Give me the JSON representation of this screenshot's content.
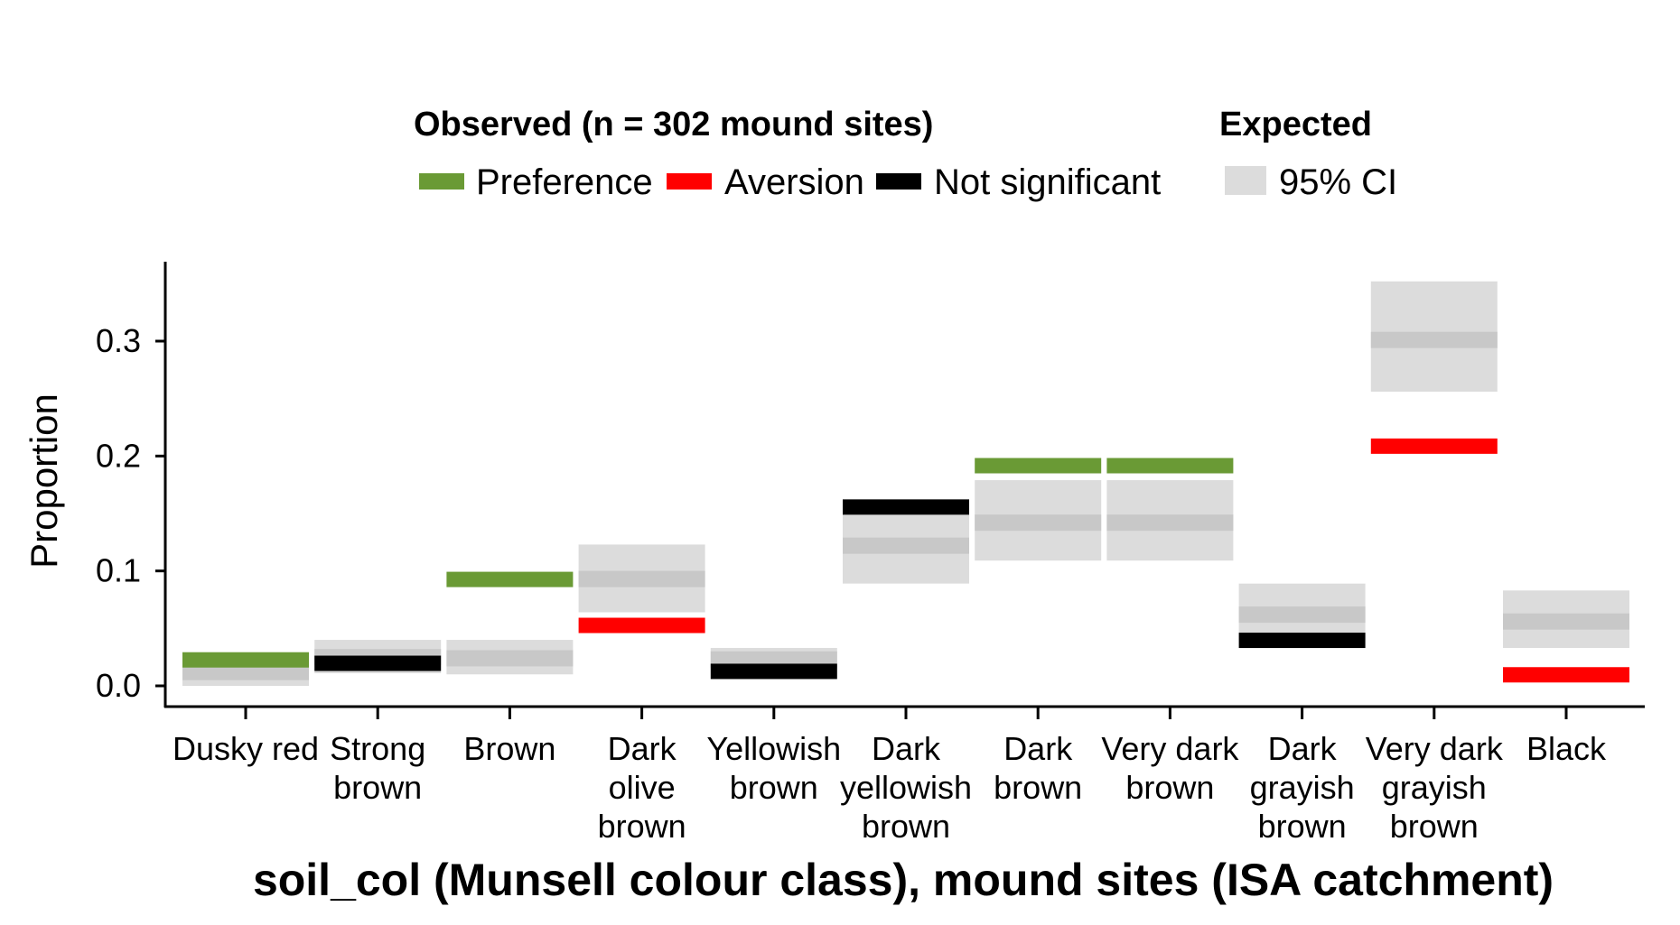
{
  "chart_data": {
    "type": "bar",
    "xlabel": "soil_col (Munsell colour class), mound sites (ISA catchment)",
    "ylabel": "Proportion",
    "ylim": [
      -0.04,
      0.37
    ],
    "yticks": [
      0.0,
      0.1,
      0.2,
      0.3
    ],
    "ytick_labels": [
      "0.0",
      "0.1",
      "0.2",
      "0.3"
    ],
    "grid": false,
    "legend": {
      "placement": "top",
      "observed_title": "Observed (n = 302 mound sites)",
      "expected_title": "Expected",
      "items": [
        {
          "key": "Preference",
          "label": "Preference",
          "color": "#6a9a35"
        },
        {
          "key": "Aversion",
          "label": "Aversion",
          "color": "#ff0000"
        },
        {
          "key": "Not significant",
          "label": "Not significant",
          "color": "#000000"
        }
      ],
      "ci_label": "95% CI"
    },
    "colors": {
      "Preference": "#6a9a35",
      "Aversion": "#ff0000",
      "Not significant": "#000000",
      "ci_band": "#dcdcdc",
      "expected_line": "#c8c8c8"
    },
    "categories": [
      {
        "label_lines": [
          "Dusky red"
        ],
        "observed": 0.023,
        "status": "Preference",
        "expected": 0.012,
        "ci_low": 0.0,
        "ci_high": 0.025
      },
      {
        "label_lines": [
          "Strong",
          "brown"
        ],
        "observed": 0.02,
        "status": "Not significant",
        "expected": 0.025,
        "ci_low": 0.011,
        "ci_high": 0.04
      },
      {
        "label_lines": [
          "Brown"
        ],
        "observed": 0.093,
        "status": "Preference",
        "expected": 0.024,
        "ci_low": 0.01,
        "ci_high": 0.04
      },
      {
        "label_lines": [
          "Dark",
          "olive",
          "brown"
        ],
        "observed": 0.053,
        "status": "Aversion",
        "expected": 0.093,
        "ci_low": 0.064,
        "ci_high": 0.123
      },
      {
        "label_lines": [
          "Yellowish",
          "brown"
        ],
        "observed": 0.013,
        "status": "Not significant",
        "expected": 0.023,
        "ci_low": 0.015,
        "ci_high": 0.033
      },
      {
        "label_lines": [
          "Dark",
          "yellowish",
          "brown"
        ],
        "observed": 0.156,
        "status": "Not significant",
        "expected": 0.122,
        "ci_low": 0.089,
        "ci_high": 0.156
      },
      {
        "label_lines": [
          "Dark",
          "brown"
        ],
        "observed": 0.192,
        "status": "Preference",
        "expected": 0.142,
        "ci_low": 0.109,
        "ci_high": 0.179
      },
      {
        "label_lines": [
          "Very dark",
          "brown"
        ],
        "observed": 0.192,
        "status": "Preference",
        "expected": 0.142,
        "ci_low": 0.109,
        "ci_high": 0.179
      },
      {
        "label_lines": [
          "Dark",
          "grayish",
          "brown"
        ],
        "observed": 0.04,
        "status": "Not significant",
        "expected": 0.062,
        "ci_low": 0.04,
        "ci_high": 0.089
      },
      {
        "label_lines": [
          "Very dark",
          "grayish",
          "brown"
        ],
        "observed": 0.209,
        "status": "Aversion",
        "expected": 0.301,
        "ci_low": 0.256,
        "ci_high": 0.352
      },
      {
        "label_lines": [
          "Black"
        ],
        "observed": 0.01,
        "status": "Aversion",
        "expected": 0.056,
        "ci_low": 0.033,
        "ci_high": 0.083
      }
    ]
  }
}
